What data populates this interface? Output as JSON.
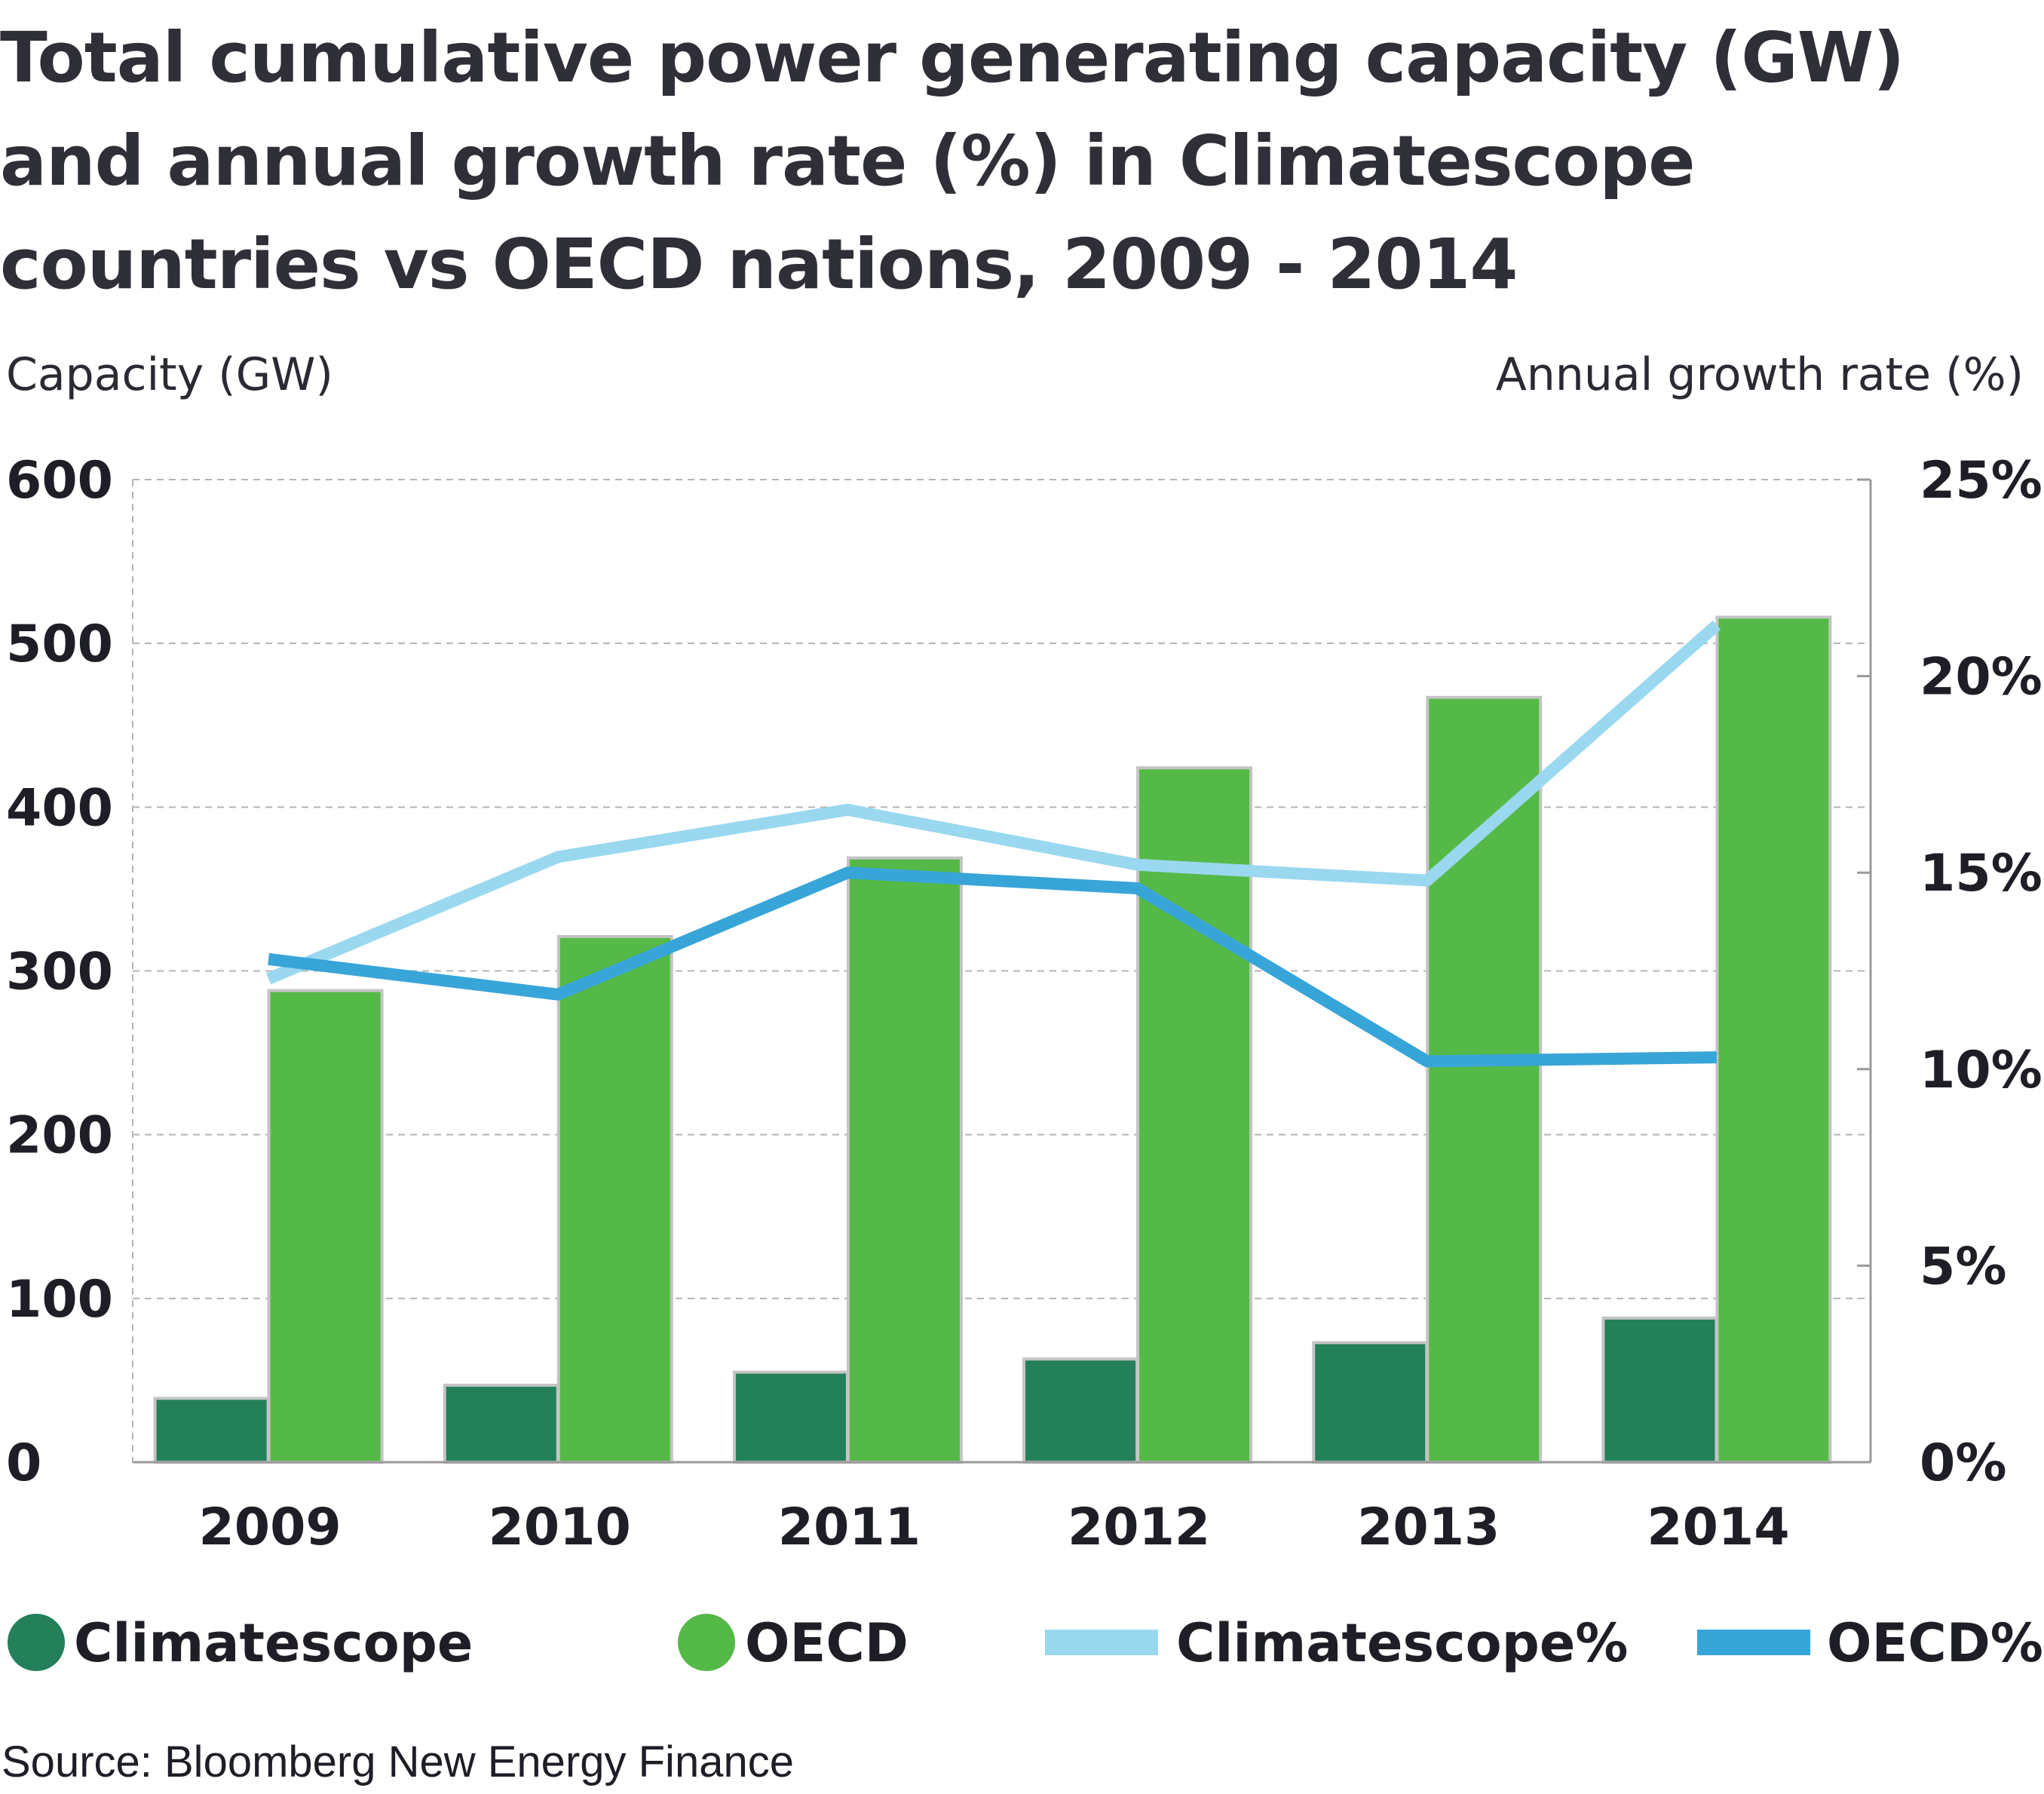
{
  "title_lines": [
    "Total cumulative power generating capacity (GW)",
    "and annual growth rate (%) in Climatescope",
    "countries vs OECD nations, 2009 - 2014"
  ],
  "source": "Source: Bloomberg New Energy Finance",
  "colors": {
    "climatescope": "#23805a",
    "oecd": "#55b947",
    "climatescope_pct": "#9ad8f0",
    "oecd_pct": "#38a5d8",
    "grid": "#b4b4b4",
    "bar_border": "#c4c4c4"
  },
  "chart_data": {
    "type": "bar",
    "title": "Total cumulative power generating capacity (GW) and annual growth rate (%) in Climatescope countries vs OECD nations, 2009 - 2014",
    "categories": [
      "2009",
      "2010",
      "2011",
      "2012",
      "2013",
      "2014"
    ],
    "ylabel": "Capacity (GW)",
    "y2label": "Annual growth rate (%)",
    "ylim": [
      0,
      600
    ],
    "y2lim": [
      0,
      25
    ],
    "yticks": [
      "0",
      "100",
      "200",
      "300",
      "400",
      "500",
      "600"
    ],
    "y2ticks": [
      "0%",
      "5%",
      "10%",
      "15%",
      "20%",
      "25%"
    ],
    "grid": true,
    "legend_position": "bottom",
    "series": [
      {
        "name": "Climatescope",
        "type": "bar",
        "axis": "left",
        "values": [
          39,
          47,
          55,
          63,
          73,
          88
        ]
      },
      {
        "name": "OECD",
        "type": "bar",
        "axis": "left",
        "values": [
          288,
          321,
          369,
          424,
          467,
          516
        ]
      },
      {
        "name": "Climatescope%",
        "type": "line",
        "axis": "right",
        "values": [
          12.3,
          15.4,
          16.6,
          15.2,
          14.8,
          21.3
        ]
      },
      {
        "name": "OECD%",
        "type": "line",
        "axis": "right",
        "values": [
          12.8,
          11.9,
          15.0,
          14.6,
          10.2,
          10.3
        ]
      }
    ]
  }
}
